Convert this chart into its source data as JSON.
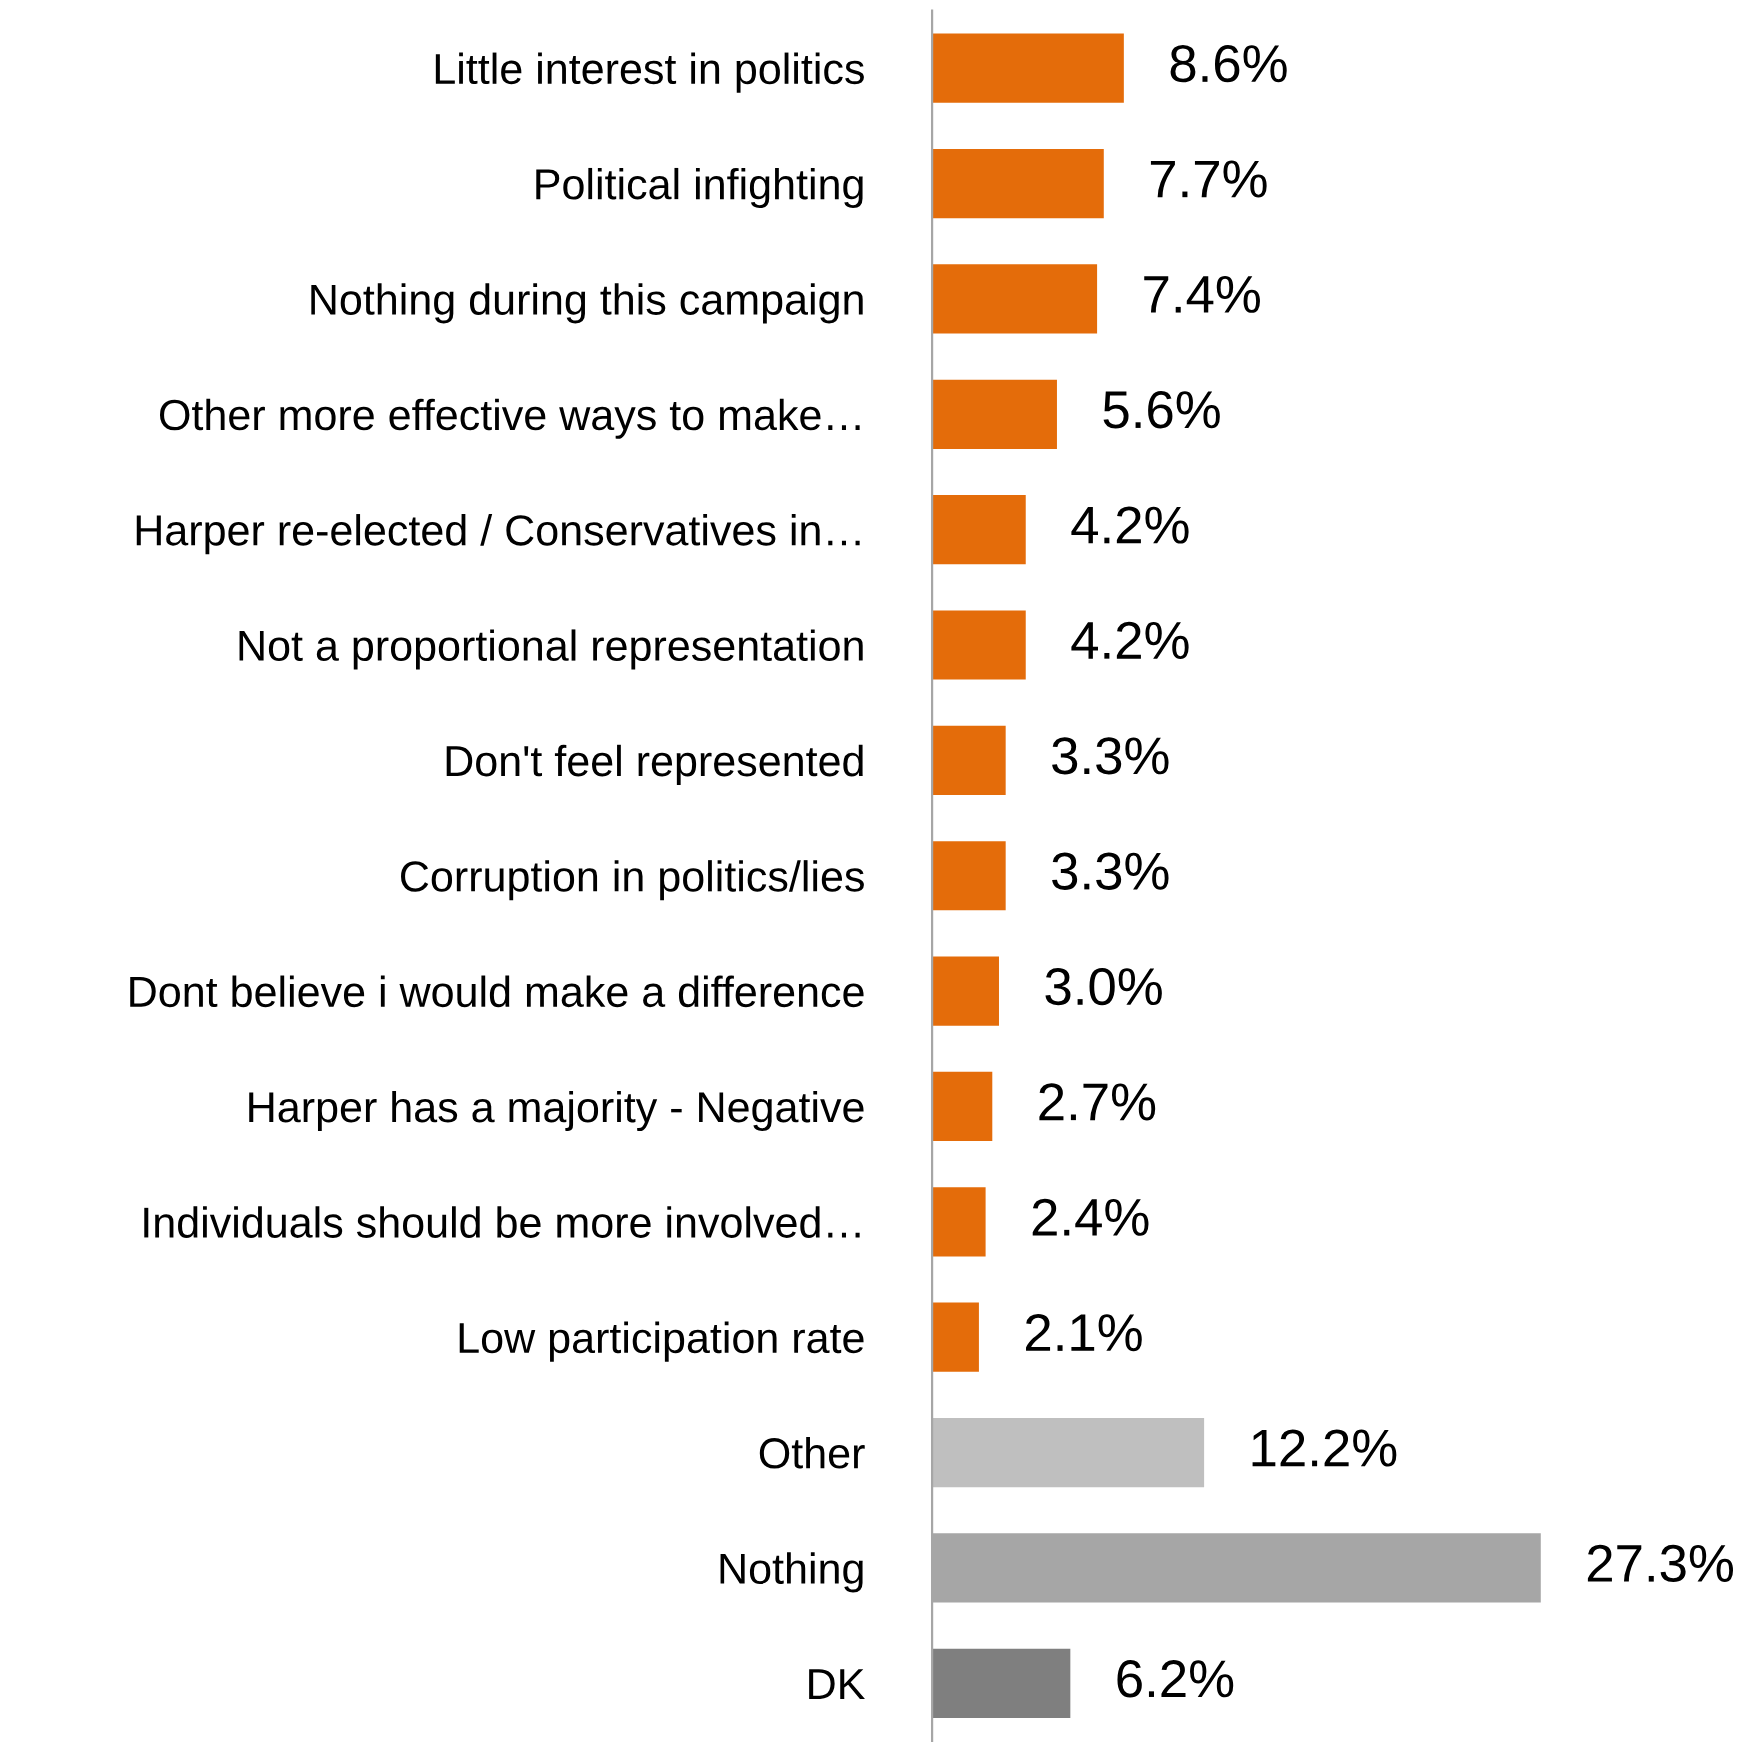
{
  "chart_data": {
    "type": "bar",
    "orientation": "horizontal",
    "categories": [
      "Little interest in politics",
      "Political infighting",
      "Nothing during this campaign",
      "Other more effective ways to make…",
      "Harper re-elected / Conservatives in…",
      "Not a proportional representation",
      "Don't feel represented",
      "Corruption in politics/lies",
      "Dont believe i would make a difference",
      "Harper has a majority - Negative",
      "Individuals should be more involved…",
      "Low participation rate",
      "Other",
      "Nothing",
      "DK"
    ],
    "values": [
      8.6,
      7.7,
      7.4,
      5.6,
      4.2,
      4.2,
      3.3,
      3.3,
      3.0,
      2.7,
      2.4,
      2.1,
      12.2,
      27.3,
      6.2
    ],
    "value_labels": [
      "8.6%",
      "7.7%",
      "7.4%",
      "5.6%",
      "4.2%",
      "4.2%",
      "3.3%",
      "3.3%",
      "3.0%",
      "2.7%",
      "2.4%",
      "2.1%",
      "12.2%",
      "27.3%",
      "6.2%"
    ],
    "colors": [
      "#e46c0a",
      "#e46c0a",
      "#e46c0a",
      "#e46c0a",
      "#e46c0a",
      "#e46c0a",
      "#e46c0a",
      "#e46c0a",
      "#e46c0a",
      "#e46c0a",
      "#e46c0a",
      "#e46c0a",
      "#bfbfbf",
      "#a6a6a6",
      "#7f7f7f"
    ],
    "grid": false,
    "legend": false
  }
}
